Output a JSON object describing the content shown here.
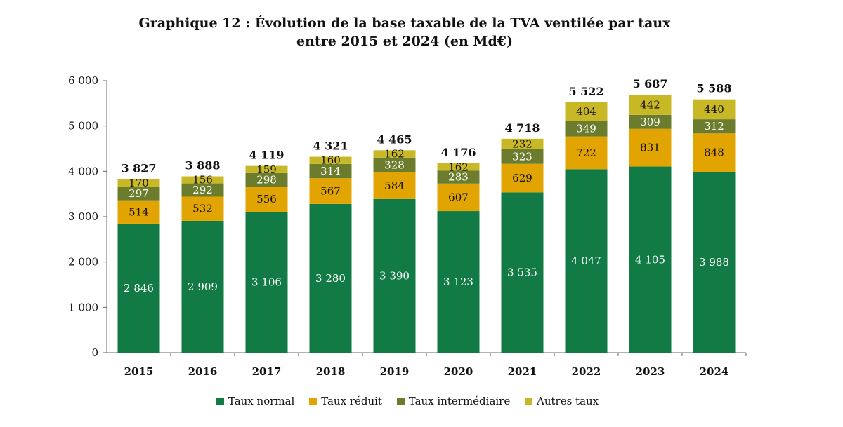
{
  "chart_data": {
    "type": "bar",
    "stacked": true,
    "title_lines": [
      "Graphique 12 : Évolution de la base taxable de la TVA ventilée par taux",
      "entre 2015 et 2024 (en Md€)"
    ],
    "categories": [
      "2015",
      "2016",
      "2017",
      "2018",
      "2019",
      "2020",
      "2021",
      "2022",
      "2023",
      "2024"
    ],
    "series": [
      {
        "name": "Taux normal",
        "color": "#127a45",
        "label_color": "#ffffff",
        "values": [
          2846,
          2909,
          3106,
          3280,
          3390,
          3123,
          3535,
          4047,
          4105,
          3988
        ],
        "labels": [
          "2 846",
          "2 909",
          "3 106",
          "3 280",
          "3 390",
          "3 123",
          "3 535",
          "4 047",
          "4 105",
          "3 988"
        ]
      },
      {
        "name": "Taux réduit",
        "color": "#e2a400",
        "label_color": "#111111",
        "values": [
          514,
          532,
          556,
          567,
          584,
          607,
          629,
          722,
          831,
          848
        ],
        "labels": [
          "514",
          "532",
          "556",
          "567",
          "584",
          "607",
          "629",
          "722",
          "831",
          "848"
        ]
      },
      {
        "name": "Taux intermédiaire",
        "color": "#6b7d2c",
        "label_color": "#ffffff",
        "values": [
          297,
          292,
          298,
          314,
          328,
          283,
          323,
          349,
          309,
          312
        ],
        "labels": [
          "297",
          "292",
          "298",
          "314",
          "328",
          "283",
          "323",
          "349",
          "309",
          "312"
        ]
      },
      {
        "name": "Autres taux",
        "color": "#c9b826",
        "label_color": "#111111",
        "values": [
          170,
          156,
          159,
          160,
          162,
          162,
          232,
          404,
          442,
          440
        ],
        "labels": [
          "170",
          "156",
          "159",
          "160",
          "162",
          "162",
          "232",
          "404",
          "442",
          "440"
        ]
      }
    ],
    "totals": [
      3827,
      3888,
      4119,
      4321,
      4465,
      4176,
      4718,
      5522,
      5687,
      5588
    ],
    "total_labels": [
      "3 827",
      "3 888",
      "4 119",
      "4 321",
      "4 465",
      "4 176",
      "4 718",
      "5 522",
      "5 687",
      "5 588"
    ],
    "ylim": [
      0,
      6000
    ],
    "yticks": [
      0,
      1000,
      2000,
      3000,
      4000,
      5000,
      6000
    ],
    "ytick_labels": [
      "0",
      "1 000",
      "2 000",
      "3 000",
      "4 000",
      "5 000",
      "6 000"
    ],
    "grid": false,
    "legend_position": "bottom"
  }
}
